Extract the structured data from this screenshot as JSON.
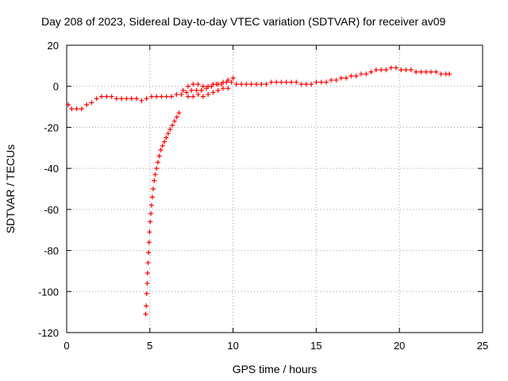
{
  "chart_data": {
    "type": "scatter",
    "title": "Day 208 of 2023, Sidereal Day-to-day VTEC variation (SDTVAR) for receiver av09",
    "xlabel": "GPS time / hours",
    "ylabel": "SDTVAR / TECUs",
    "xlim": [
      0,
      25
    ],
    "ylim": [
      -120,
      20
    ],
    "xticks": [
      0,
      5,
      10,
      15,
      20,
      25
    ],
    "yticks": [
      -120,
      -100,
      -80,
      -60,
      -40,
      -20,
      0,
      20
    ],
    "grid": true,
    "marker": "+",
    "color": "#ff0000",
    "series": [
      {
        "name": "main track",
        "x": [
          0.1,
          0.3,
          0.6,
          0.9,
          1.2,
          1.5,
          1.8,
          2.1,
          2.4,
          2.7,
          3.0,
          3.3,
          3.6,
          3.9,
          4.2,
          4.5,
          4.8,
          5.1,
          5.4,
          5.7,
          6.0,
          6.3,
          6.6,
          6.9,
          7.2,
          7.5,
          7.8,
          8.1,
          8.4,
          8.7,
          9.0,
          9.3,
          9.6,
          9.9,
          10.2,
          10.5,
          10.8,
          11.1,
          11.4,
          11.7,
          12.0,
          12.3,
          12.6,
          12.9,
          13.2,
          13.5,
          13.8,
          14.1,
          14.4,
          14.7,
          15.0,
          15.3,
          15.6,
          15.9,
          16.2,
          16.5,
          16.8,
          17.1,
          17.4,
          17.7,
          18.0,
          18.3,
          18.6,
          18.9,
          19.2,
          19.5,
          19.8,
          20.1,
          20.4,
          20.7,
          21.0,
          21.3,
          21.6,
          21.9,
          22.2,
          22.5,
          22.8,
          23.0
        ],
        "y": [
          -9,
          -11,
          -11,
          -11,
          -9,
          -8,
          -6,
          -5,
          -5,
          -5,
          -6,
          -6,
          -6,
          -6,
          -6,
          -7,
          -6,
          -5,
          -5,
          -5,
          -5,
          -5,
          -4,
          -4,
          -3,
          -2,
          -2,
          -2,
          -1,
          0,
          1,
          1,
          2,
          2,
          1,
          1,
          1,
          1,
          1,
          1,
          1,
          2,
          2,
          2,
          2,
          2,
          2,
          1,
          1,
          1,
          2,
          2,
          2,
          3,
          3,
          4,
          4,
          5,
          5,
          6,
          6,
          7,
          8,
          8,
          8,
          9,
          9,
          8,
          8,
          8,
          7,
          7,
          7,
          7,
          7,
          6,
          6,
          6
        ]
      },
      {
        "name": "upper band",
        "x": [
          7.0,
          7.3,
          7.6,
          7.9,
          8.2,
          8.5,
          8.8,
          9.1,
          9.4,
          9.7,
          10.0
        ],
        "y": [
          -2,
          0,
          1,
          1,
          0,
          0,
          1,
          1,
          2,
          3,
          4
        ]
      },
      {
        "name": "lower band",
        "x": [
          7.3,
          7.6,
          7.9,
          8.2,
          8.5,
          8.8,
          9.1,
          9.4,
          9.7
        ],
        "y": [
          -5,
          -5,
          -4,
          -5,
          -4,
          -3,
          -2,
          -1,
          -1
        ]
      },
      {
        "name": "rising arc",
        "x": [
          4.75,
          4.78,
          4.81,
          4.84,
          4.86,
          4.89,
          4.92,
          4.95,
          4.98,
          5.02,
          5.06,
          5.1,
          5.15,
          5.2,
          5.26,
          5.32,
          5.4,
          5.48,
          5.57,
          5.66,
          5.76,
          5.87,
          5.98,
          6.1,
          6.22,
          6.35,
          6.48,
          6.62,
          6.75
        ],
        "y": [
          -111,
          -107,
          -101,
          -96,
          -91,
          -86,
          -81,
          -76,
          -71,
          -66,
          -62,
          -58,
          -54,
          -50,
          -46,
          -43,
          -40,
          -37,
          -34,
          -31,
          -29,
          -27,
          -25,
          -23,
          -21,
          -19,
          -17,
          -15,
          -13
        ]
      }
    ]
  }
}
